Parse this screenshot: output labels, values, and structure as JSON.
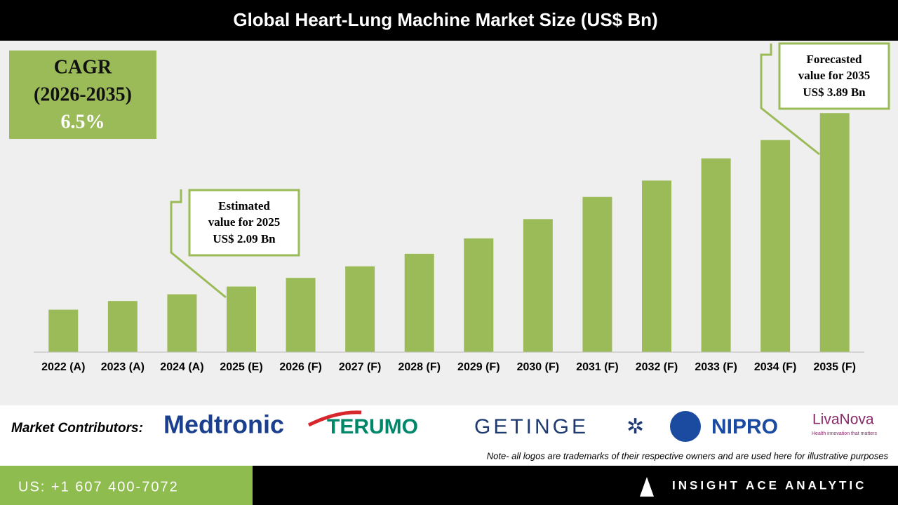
{
  "chart_data": {
    "type": "bar",
    "title": "Global Heart-Lung Machine Market Size (US$ Bn)",
    "categories": [
      "2022 (A)",
      "2023 (A)",
      "2024 (A)",
      "2025 (E)",
      "2026 (F)",
      "2027 (F)",
      "2028 (F)",
      "2029 (F)",
      "2030 (F)",
      "2031 (F)",
      "2032 (F)",
      "2033 (F)",
      "2034 (F)",
      "2035 (F)"
    ],
    "values": [
      1.85,
      1.94,
      2.01,
      2.09,
      2.18,
      2.3,
      2.43,
      2.59,
      2.79,
      3.02,
      3.19,
      3.42,
      3.61,
      3.89
    ],
    "color": "#9bbb59",
    "ylim": [
      1.41,
      4.03
    ],
    "cagr": [
      "CAGR",
      "(2026-2035)",
      "6.5%"
    ],
    "annotations": [
      {
        "lines": [
          "Estimated",
          "value for 2025",
          "US$ 2.09 Bn"
        ]
      },
      {
        "lines": [
          "Forecasted",
          "value for 2035",
          "US$ 3.89 Bn"
        ]
      }
    ]
  },
  "contributors": {
    "label": "Market Contributors:",
    "logos": [
      "Medtronic",
      "TERUMO",
      "GETINGE",
      "NIPRO",
      "LivaNova",
      "Health innovation that matters"
    ],
    "note": "Note- all logos are trademarks of their respective owners and are used here for illustrative purposes"
  },
  "footer": {
    "phone": "US: +1 607 400-7072",
    "brand": "INSIGHT ACE ANALYTIC"
  }
}
